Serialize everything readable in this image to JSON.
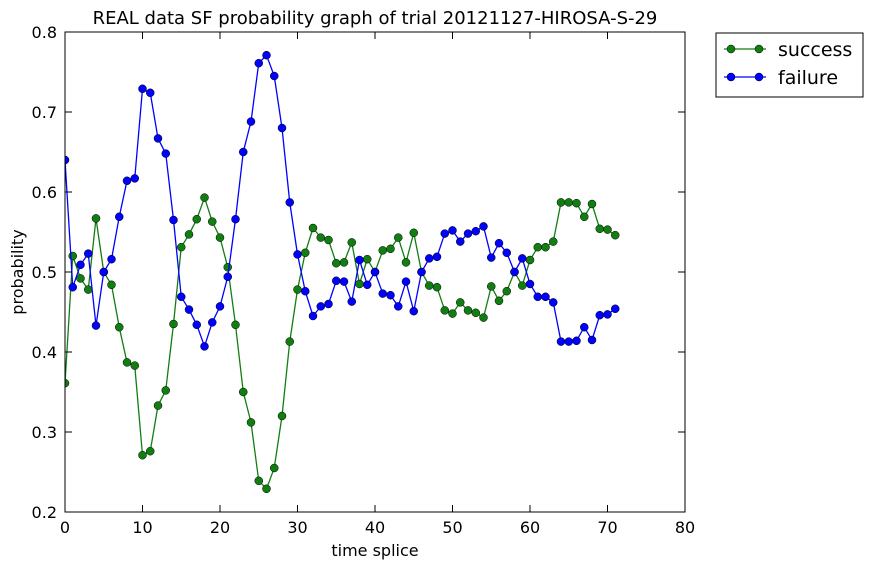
{
  "chart_data": {
    "type": "line",
    "title": "REAL data SF probability graph of trial 20121127-HIROSA-S-29",
    "xlabel": "time splice",
    "ylabel": "probability",
    "xlim": [
      0,
      80
    ],
    "ylim": [
      0.2,
      0.8
    ],
    "xticks": [
      "0",
      "10",
      "20",
      "30",
      "40",
      "50",
      "60",
      "70",
      "80"
    ],
    "yticks": [
      "0.2",
      "0.3",
      "0.4",
      "0.5",
      "0.6",
      "0.7",
      "0.8"
    ],
    "grid": false,
    "legend_position": "outside-top-right",
    "x": [
      0,
      1,
      2,
      3,
      4,
      5,
      6,
      7,
      8,
      9,
      10,
      11,
      12,
      13,
      14,
      15,
      16,
      17,
      18,
      19,
      20,
      21,
      22,
      23,
      24,
      25,
      26,
      27,
      28,
      29,
      30,
      31,
      32,
      33,
      34,
      35,
      36,
      37,
      38,
      39,
      40,
      41,
      42,
      43,
      44,
      45,
      46,
      47,
      48,
      49,
      50,
      51,
      52,
      53,
      54,
      55,
      56,
      57,
      58,
      59,
      60,
      61,
      62,
      63,
      64,
      65,
      66,
      67,
      68,
      69,
      70,
      71
    ],
    "series": [
      {
        "name": "success",
        "color": "#117e11",
        "values": [
          0.361,
          0.52,
          0.492,
          0.478,
          0.567,
          0.5,
          0.484,
          0.431,
          0.387,
          0.383,
          0.271,
          0.276,
          0.333,
          0.352,
          0.435,
          0.531,
          0.547,
          0.566,
          0.593,
          0.563,
          0.543,
          0.506,
          0.434,
          0.35,
          0.312,
          0.239,
          0.229,
          0.255,
          0.32,
          0.413,
          0.478,
          0.524,
          0.555,
          0.543,
          0.54,
          0.511,
          0.512,
          0.537,
          0.485,
          0.516,
          0.5,
          0.527,
          0.529,
          0.543,
          0.512,
          0.549,
          0.5,
          0.483,
          0.481,
          0.452,
          0.448,
          0.462,
          0.452,
          0.449,
          0.443,
          0.482,
          0.464,
          0.476,
          0.5,
          0.483,
          0.515,
          0.531,
          0.531,
          0.538,
          0.587,
          0.587,
          0.586,
          0.569,
          0.585,
          0.554,
          0.553,
          0.546
        ]
      },
      {
        "name": "failure",
        "color": "#0000ff",
        "values": [
          0.64,
          0.481,
          0.509,
          0.523,
          0.433,
          0.5,
          0.516,
          0.569,
          0.614,
          0.617,
          0.729,
          0.724,
          0.667,
          0.648,
          0.565,
          0.469,
          0.453,
          0.434,
          0.407,
          0.437,
          0.457,
          0.494,
          0.566,
          0.65,
          0.688,
          0.761,
          0.771,
          0.745,
          0.68,
          0.587,
          0.522,
          0.476,
          0.445,
          0.457,
          0.46,
          0.489,
          0.488,
          0.463,
          0.515,
          0.484,
          0.5,
          0.473,
          0.471,
          0.457,
          0.488,
          0.451,
          0.5,
          0.517,
          0.519,
          0.548,
          0.552,
          0.538,
          0.548,
          0.551,
          0.557,
          0.518,
          0.536,
          0.524,
          0.5,
          0.517,
          0.485,
          0.469,
          0.469,
          0.462,
          0.413,
          0.413,
          0.414,
          0.431,
          0.415,
          0.446,
          0.447,
          0.454
        ]
      }
    ]
  }
}
